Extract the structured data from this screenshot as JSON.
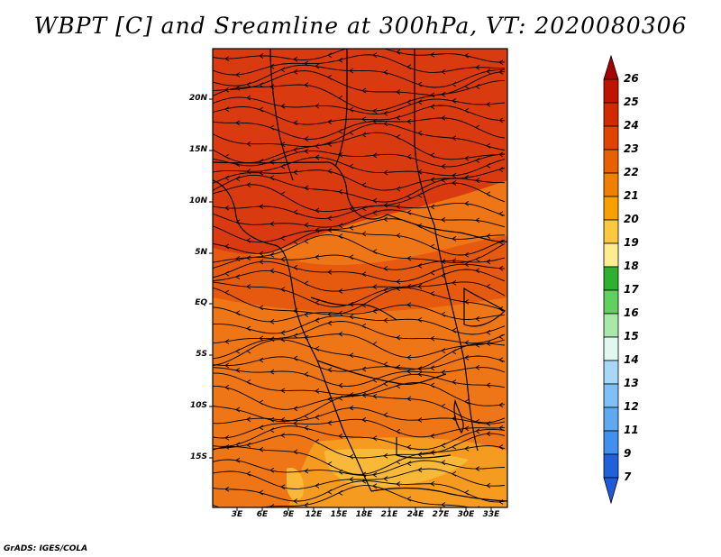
{
  "title": "WBPT [C] and Sreamline at 300hPa, VT: 2020080306",
  "footer": "GrADS: IGES/COLA",
  "map": {
    "latitude_labels": [
      "20N",
      "15N",
      "10N",
      "5N",
      "EQ",
      "5S",
      "10S",
      "15S"
    ],
    "longitude_labels": [
      "3E",
      "6E",
      "9E",
      "12E",
      "15E",
      "18E",
      "21E",
      "24E",
      "27E",
      "30E",
      "33E"
    ]
  },
  "colorbar": {
    "labels": [
      "26",
      "25",
      "24",
      "23",
      "22",
      "21",
      "20",
      "19",
      "18",
      "17",
      "16",
      "15",
      "14",
      "13",
      "12",
      "11",
      "9",
      "7"
    ],
    "colors": [
      "#a50000",
      "#c01400",
      "#d22a00",
      "#e04400",
      "#e86000",
      "#f08000",
      "#f8a000",
      "#fbc840",
      "#fdec90",
      "#30b030",
      "#60d060",
      "#a8e8a8",
      "#e0f8f0",
      "#a8d8f8",
      "#80c0f8",
      "#60a8f0",
      "#4090f0",
      "#2060d8",
      "#1e5ad8"
    ]
  },
  "field_colors": {
    "dark": "#d93a10",
    "mid": "#e65a10",
    "light": "#ee7616",
    "warm": "#f59c20",
    "yellow": "#f8b838"
  }
}
